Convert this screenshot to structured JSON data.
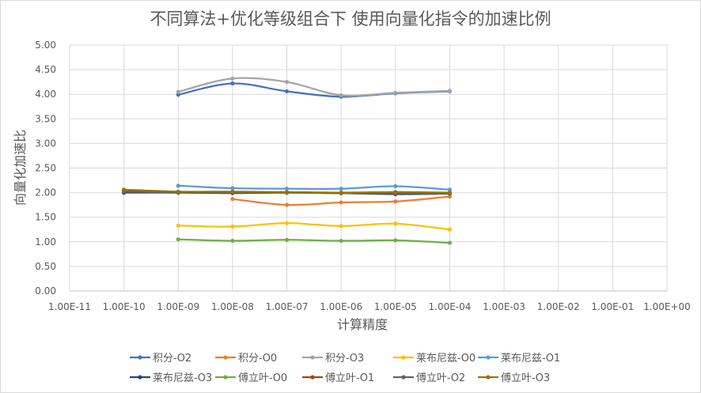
{
  "chart_data": {
    "type": "line",
    "title": "不同算法+优化等级组合下 使用向量化指令的加速比例",
    "xlabel": "计算精度",
    "ylabel": "向量化加速比",
    "x_scale": "log",
    "x_ticks": [
      "1.00E-11",
      "1.00E-10",
      "1.00E-09",
      "1.00E-08",
      "1.00E-07",
      "1.00E-06",
      "1.00E-05",
      "1.00E-04",
      "1.00E-03",
      "1.00E-02",
      "1.00E-01",
      "1.00E+00"
    ],
    "y_ticks": [
      "0.00",
      "0.50",
      "1.00",
      "1.50",
      "2.00",
      "2.50",
      "3.00",
      "3.50",
      "4.00",
      "4.50",
      "5.00"
    ],
    "ylim": [
      0,
      5
    ],
    "xlim": [
      1e-11,
      1
    ],
    "grid": "vertical-and-horizontal",
    "legend_position": "bottom",
    "series": [
      {
        "name": "积分-O2",
        "color": "#4472c4",
        "x": [
          1e-09,
          1e-08,
          1e-07,
          1e-06,
          1e-05,
          0.0001
        ],
        "values": [
          3.99,
          4.22,
          4.06,
          3.95,
          4.02,
          4.06
        ]
      },
      {
        "name": "积分-O0",
        "color": "#ed7d31",
        "x": [
          1e-08,
          1e-07,
          1e-06,
          1e-05,
          0.0001
        ],
        "values": [
          1.87,
          1.75,
          1.8,
          1.82,
          1.92
        ]
      },
      {
        "name": "积分-O3",
        "color": "#a5a5a5",
        "x": [
          1e-09,
          1e-08,
          1e-07,
          1e-06,
          1e-05,
          0.0001
        ],
        "values": [
          4.05,
          4.32,
          4.25,
          3.98,
          4.03,
          4.07
        ]
      },
      {
        "name": "莱布尼兹-O0",
        "color": "#ffc000",
        "x": [
          1e-09,
          1e-08,
          1e-07,
          1e-06,
          1e-05,
          0.0001
        ],
        "values": [
          1.33,
          1.31,
          1.38,
          1.32,
          1.37,
          1.25
        ]
      },
      {
        "name": "莱布尼兹-O1",
        "color": "#5b9bd5",
        "x": [
          1e-09,
          1e-08,
          1e-07,
          1e-06,
          1e-05,
          0.0001
        ],
        "values": [
          2.14,
          2.09,
          2.08,
          2.08,
          2.13,
          2.06
        ]
      },
      {
        "name": "莱布尼兹-O3",
        "color": "#264478",
        "x": [
          1e-10,
          1e-09,
          1e-08,
          1e-07,
          1e-06,
          1e-05,
          0.0001
        ],
        "values": [
          2.0,
          2.0,
          1.99,
          2.0,
          1.99,
          1.97,
          1.98
        ]
      },
      {
        "name": "傅立叶-O0",
        "color": "#70ad47",
        "x": [
          1e-09,
          1e-08,
          1e-07,
          1e-06,
          1e-05,
          0.0001
        ],
        "values": [
          1.05,
          1.02,
          1.04,
          1.02,
          1.03,
          0.98
        ]
      },
      {
        "name": "傅立叶-O1",
        "color": "#9e480e",
        "x": [
          1e-10,
          1e-09,
          1e-08,
          1e-07,
          1e-06,
          1e-05,
          0.0001
        ],
        "values": [
          2.05,
          2.01,
          2.0,
          2.01,
          1.99,
          2.01,
          1.99
        ]
      },
      {
        "name": "傅立叶-O2",
        "color": "#636363",
        "x": [
          1e-10,
          1e-09,
          1e-08,
          1e-07,
          1e-06,
          1e-05,
          0.0001
        ],
        "values": [
          2.02,
          2.01,
          2.01,
          2.0,
          1.99,
          1.99,
          1.98
        ]
      },
      {
        "name": "傅立叶-O3",
        "color": "#997300",
        "x": [
          1e-10,
          1e-09,
          1e-08,
          1e-07,
          1e-06,
          1e-05,
          0.0001
        ],
        "values": [
          2.06,
          2.02,
          2.02,
          2.01,
          2.0,
          2.01,
          2.0
        ]
      }
    ]
  }
}
